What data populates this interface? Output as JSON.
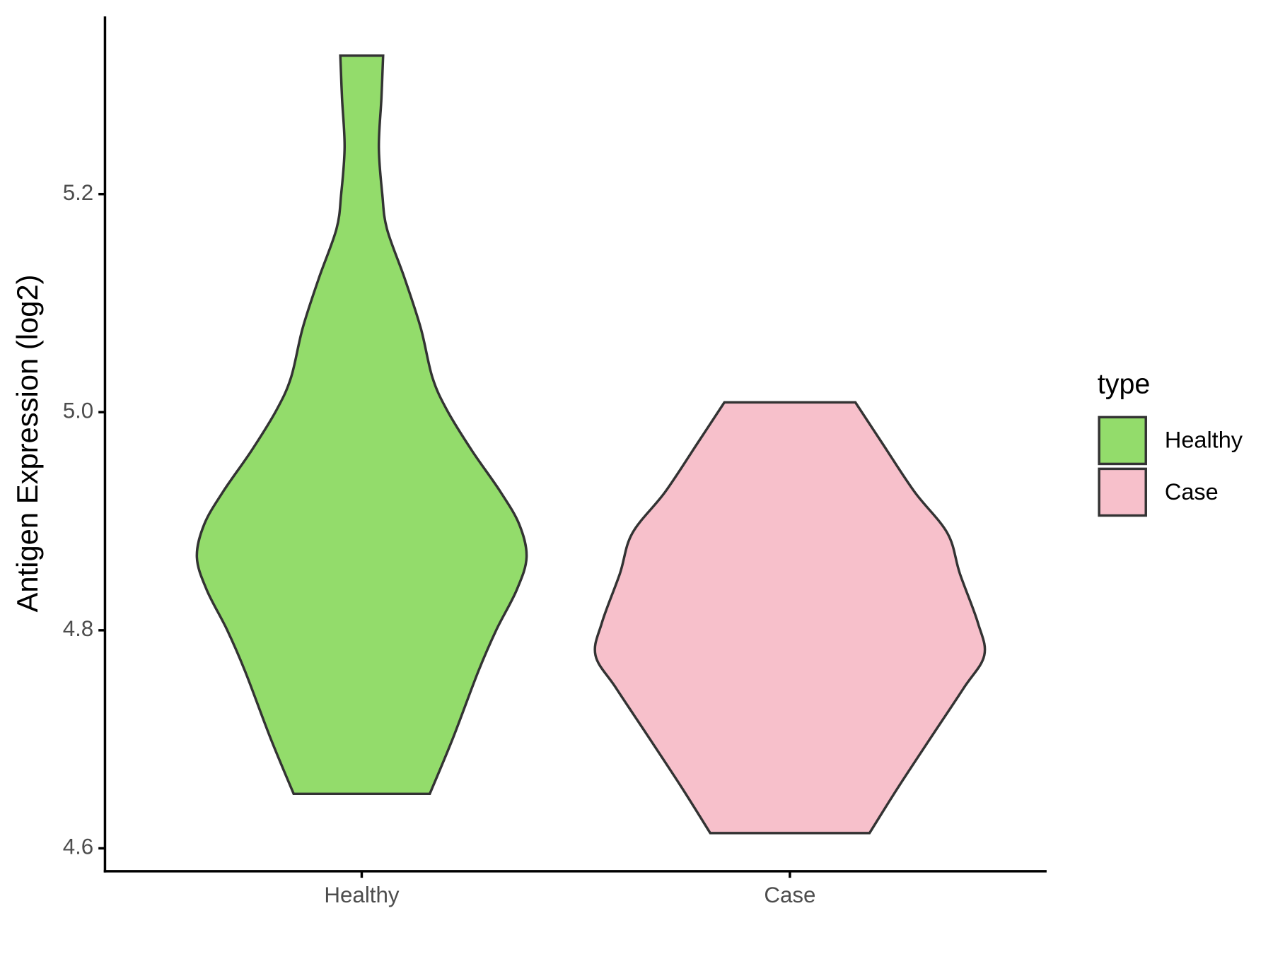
{
  "chart_data": {
    "type": "violin",
    "y_label": "Antigen Expression (log2)",
    "categories": [
      "Healthy",
      "Case"
    ],
    "ylim": [
      4.579,
      5.363
    ],
    "yticks": [
      4.6,
      4.8,
      {
        "value": 5,
        "label": "5.0"
      },
      5.2
    ],
    "legend_title": "type",
    "legend": "right",
    "outline_color": "#333333",
    "series": [
      {
        "name": "Healthy",
        "color": "#93dc6b",
        "y": [
          4.65,
          4.701,
          4.762,
          4.8,
          4.837,
          4.867,
          4.897,
          4.927,
          4.965,
          5.002,
          5.032,
          5.077,
          5.123,
          5.168,
          5.2,
          5.243,
          5.288,
          5.327
        ],
        "width": [
          0.159,
          0.213,
          0.272,
          0.314,
          0.362,
          0.385,
          0.368,
          0.324,
          0.257,
          0.199,
          0.165,
          0.138,
          0.1,
          0.059,
          0.048,
          0.04,
          0.046,
          0.05
        ]
      },
      {
        "name": "Case",
        "color": "#f7c0cb",
        "y": [
          4.614,
          4.656,
          4.702,
          4.747,
          4.777,
          4.807,
          4.852,
          4.889,
          4.927,
          4.972,
          5.009
        ],
        "width": [
          0.186,
          0.253,
          0.33,
          0.406,
          0.454,
          0.439,
          0.397,
          0.368,
          0.291,
          0.215,
          0.153
        ]
      }
    ]
  }
}
